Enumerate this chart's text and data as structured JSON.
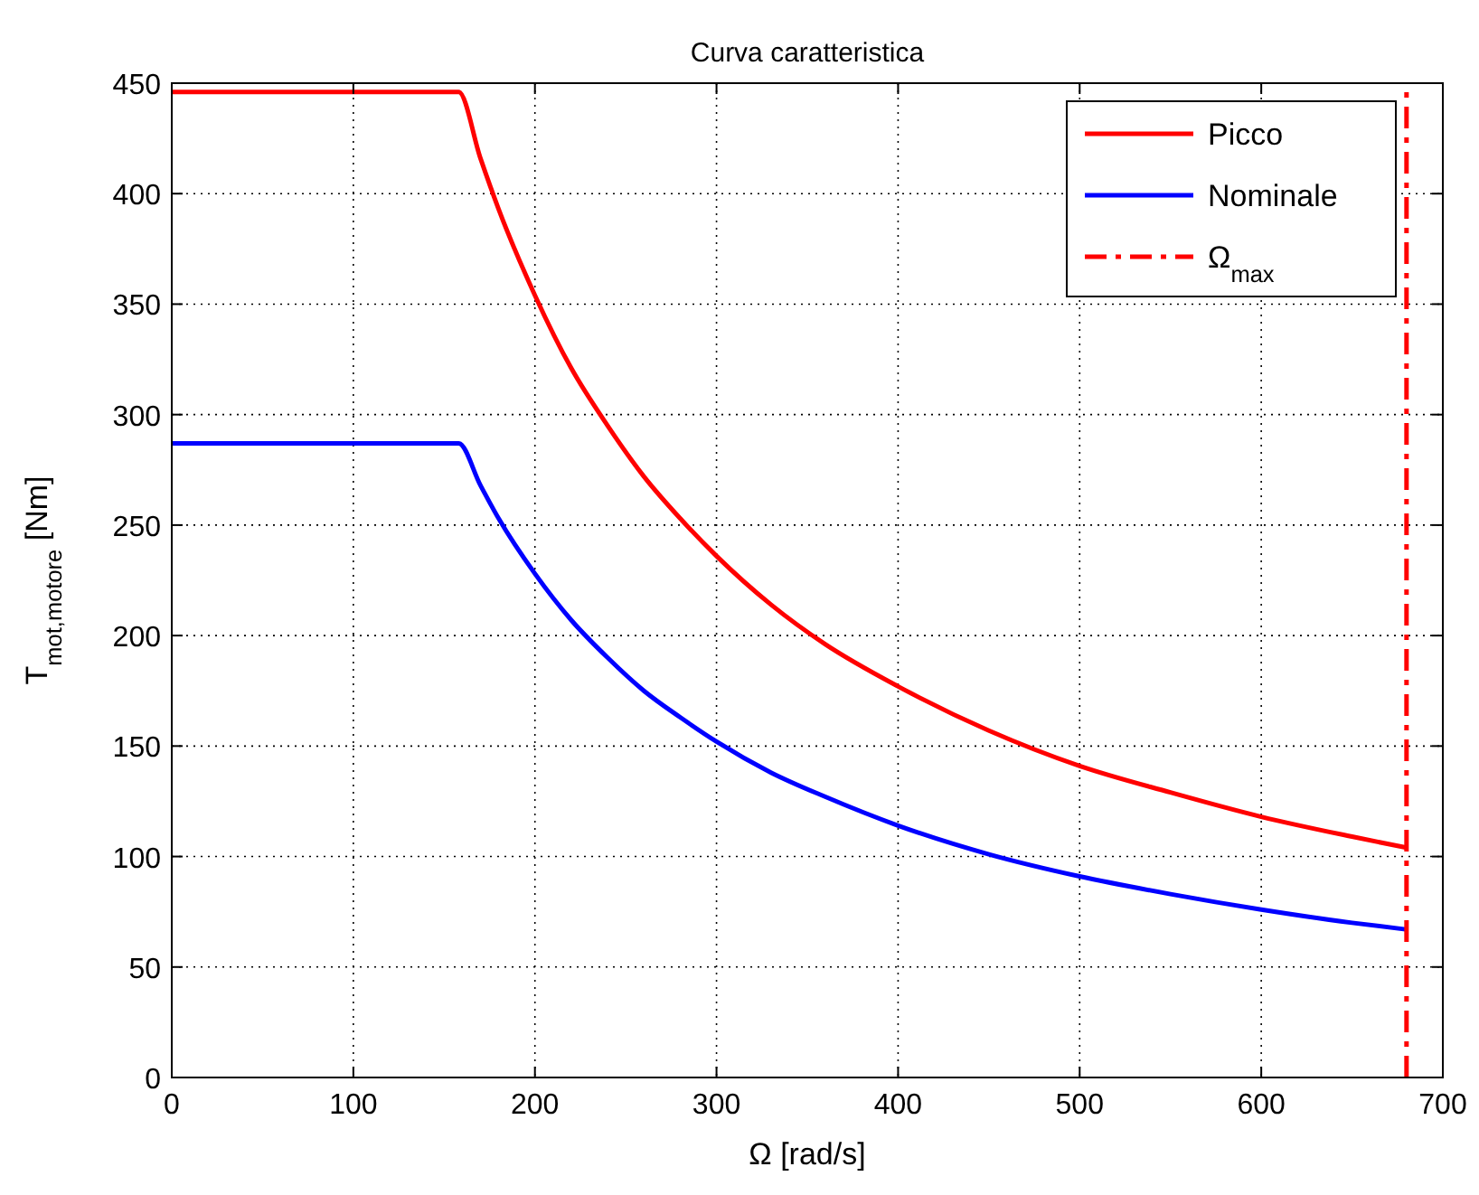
{
  "chart_data": {
    "type": "line",
    "title": "Curva caratteristica",
    "xlabel": "Ω [rad/s]",
    "ylabel": "T$_{mot,motore}$ [Nm]",
    "xlim": [
      0,
      700
    ],
    "xticks": [
      0,
      100,
      200,
      300,
      400,
      500,
      600,
      700
    ],
    "ylim": [
      0,
      450
    ],
    "yticks": [
      0,
      50,
      100,
      150,
      200,
      250,
      300,
      350,
      400,
      450
    ],
    "grid": true,
    "legend": "top right",
    "marker": "none",
    "series": [
      {
        "name": "Picco",
        "color": "#ff0000",
        "line_style": "solid",
        "x": [
          0,
          158,
          170,
          180,
          200,
          220,
          240,
          260,
          280,
          300,
          330,
          360,
          400,
          450,
          500,
          550,
          600,
          650,
          680
        ],
        "values": [
          446,
          446,
          416,
          393,
          354,
          321,
          295,
          272,
          253,
          236,
          214,
          196,
          177,
          157,
          141,
          129,
          118,
          109,
          104
        ]
      },
      {
        "name": "Nominale",
        "color": "#0000ff",
        "line_style": "solid",
        "x": [
          0,
          158,
          170,
          180,
          200,
          220,
          240,
          260,
          280,
          300,
          330,
          360,
          400,
          450,
          500,
          550,
          600,
          650,
          680
        ],
        "values": [
          287,
          287,
          268,
          253,
          228,
          207,
          190,
          175,
          163,
          152,
          138,
          127,
          114,
          101,
          91,
          83,
          76,
          70,
          67
        ]
      },
      {
        "name": "Ω$_{max}$",
        "color": "#ff0000",
        "line_style": "dashdot",
        "x": [
          680,
          680
        ],
        "values": [
          0,
          450
        ]
      }
    ]
  }
}
